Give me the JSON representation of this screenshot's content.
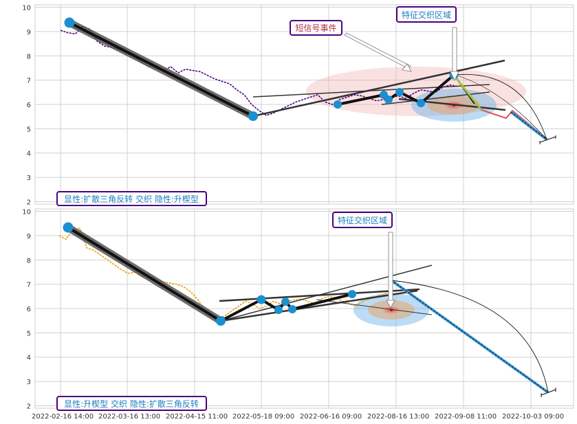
{
  "chart_data": [
    {
      "type": "line",
      "panel": "top",
      "ylim": [
        1.9,
        10.1
      ],
      "yticks": [
        2,
        3,
        4,
        5,
        6,
        7,
        8,
        9,
        10
      ],
      "xlabels": [],
      "grid": true,
      "price_color": "#4b0082",
      "series": [
        {
          "values": [
            [
              0,
              9.05
            ],
            [
              1,
              8.95
            ],
            [
              2,
              8.9
            ],
            [
              3,
              9.2
            ],
            [
              4,
              9.1
            ],
            [
              5,
              8.6
            ],
            [
              6,
              8.4
            ],
            [
              7,
              8.35
            ],
            [
              8,
              8.25
            ],
            [
              9,
              8.1
            ],
            [
              10,
              7.95
            ],
            [
              11,
              7.75
            ],
            [
              12,
              7.55
            ],
            [
              13,
              7.6
            ],
            [
              14,
              7.4
            ],
            [
              15,
              7.55
            ],
            [
              16,
              7.3
            ],
            [
              17,
              7.45
            ],
            [
              18,
              7.4
            ],
            [
              19,
              7.35
            ],
            [
              20,
              7.2
            ],
            [
              21,
              7.05
            ],
            [
              22,
              6.95
            ],
            [
              23,
              6.85
            ],
            [
              24,
              6.6
            ],
            [
              25,
              6.4
            ],
            [
              26,
              6.0
            ],
            [
              27,
              5.75
            ],
            [
              28,
              5.55
            ],
            [
              29,
              5.65
            ],
            [
              30,
              5.8
            ],
            [
              31,
              5.95
            ],
            [
              32,
              6.1
            ],
            [
              33,
              6.2
            ],
            [
              34,
              6.3
            ],
            [
              35,
              6.4
            ],
            [
              36,
              6.1
            ],
            [
              37,
              6.0
            ],
            [
              38,
              6.2
            ],
            [
              39,
              6.3
            ],
            [
              40,
              6.4
            ],
            [
              41,
              6.35
            ],
            [
              42,
              6.25
            ],
            [
              43,
              6.15
            ],
            [
              44,
              6.2
            ],
            [
              45,
              6.3
            ],
            [
              46,
              6.35
            ],
            [
              47,
              6.25
            ],
            [
              48,
              6.45
            ],
            [
              49,
              6.6
            ],
            [
              50,
              6.55
            ],
            [
              51,
              6.5
            ],
            [
              52,
              6.7
            ],
            [
              53,
              6.8
            ],
            [
              54,
              6.75
            ]
          ]
        }
      ],
      "label_text": "显性:扩散三角反转 交织 隐性:升楔型",
      "annotations": [
        {
          "text": "短信号事件",
          "color": "#b03040"
        },
        {
          "text": "特征交织区域",
          "color": "#1a7fbf"
        }
      ]
    },
    {
      "type": "line",
      "panel": "bottom",
      "ylim": [
        1.9,
        10.1
      ],
      "yticks": [
        2,
        3,
        4,
        5,
        6,
        7,
        8,
        9,
        10
      ],
      "xlabels": [
        "2022-02-16 14:00",
        "2022-03-16 13:00",
        "2022-04-15 11:00",
        "2022-05-18 09:00",
        "2022-06-16 09:00",
        "2022-08-16 13:00",
        "2022-09-08 11:00",
        "2022-10-03 09:00"
      ],
      "grid": true,
      "price_color": "#f0a000",
      "series": [
        {
          "values": [
            [
              0,
              9.0
            ],
            [
              1,
              8.85
            ],
            [
              2,
              9.25
            ],
            [
              3,
              9.3
            ],
            [
              4,
              8.5
            ],
            [
              5,
              8.4
            ],
            [
              6,
              8.2
            ],
            [
              7,
              8.0
            ],
            [
              8,
              7.8
            ],
            [
              9,
              7.6
            ],
            [
              10,
              7.45
            ],
            [
              11,
              7.5
            ],
            [
              12,
              7.3
            ],
            [
              13,
              7.45
            ],
            [
              14,
              7.2
            ],
            [
              15,
              7.1
            ],
            [
              16,
              7.05
            ],
            [
              17,
              7.0
            ],
            [
              18,
              6.9
            ],
            [
              19,
              6.7
            ],
            [
              20,
              6.4
            ],
            [
              21,
              6.0
            ],
            [
              22,
              5.7
            ],
            [
              23,
              5.55
            ],
            [
              24,
              5.7
            ],
            [
              25,
              5.9
            ],
            [
              26,
              6.1
            ],
            [
              27,
              6.3
            ],
            [
              28,
              6.2
            ],
            [
              29,
              6.0
            ],
            [
              30,
              6.1
            ],
            [
              31,
              6.3
            ],
            [
              32,
              6.2
            ],
            [
              33,
              6.3
            ],
            [
              34,
              6.35
            ],
            [
              35,
              6.4
            ],
            [
              36,
              6.3
            ],
            [
              37,
              6.2
            ],
            [
              38,
              6.4
            ],
            [
              39,
              6.5
            ],
            [
              40,
              6.45
            ],
            [
              41,
              6.3
            ],
            [
              42,
              6.2
            ],
            [
              43,
              6.1
            ],
            [
              44,
              6.3
            ],
            [
              45,
              6.4
            ],
            [
              46,
              6.5
            ],
            [
              47,
              6.6
            ],
            [
              48,
              6.7
            ]
          ]
        }
      ],
      "label_text": "显性:升楔型 交织 隐性:扩散三角反转",
      "annotations": [
        {
          "text": "特征交织区域",
          "color": "#1a7fbf"
        }
      ]
    }
  ]
}
